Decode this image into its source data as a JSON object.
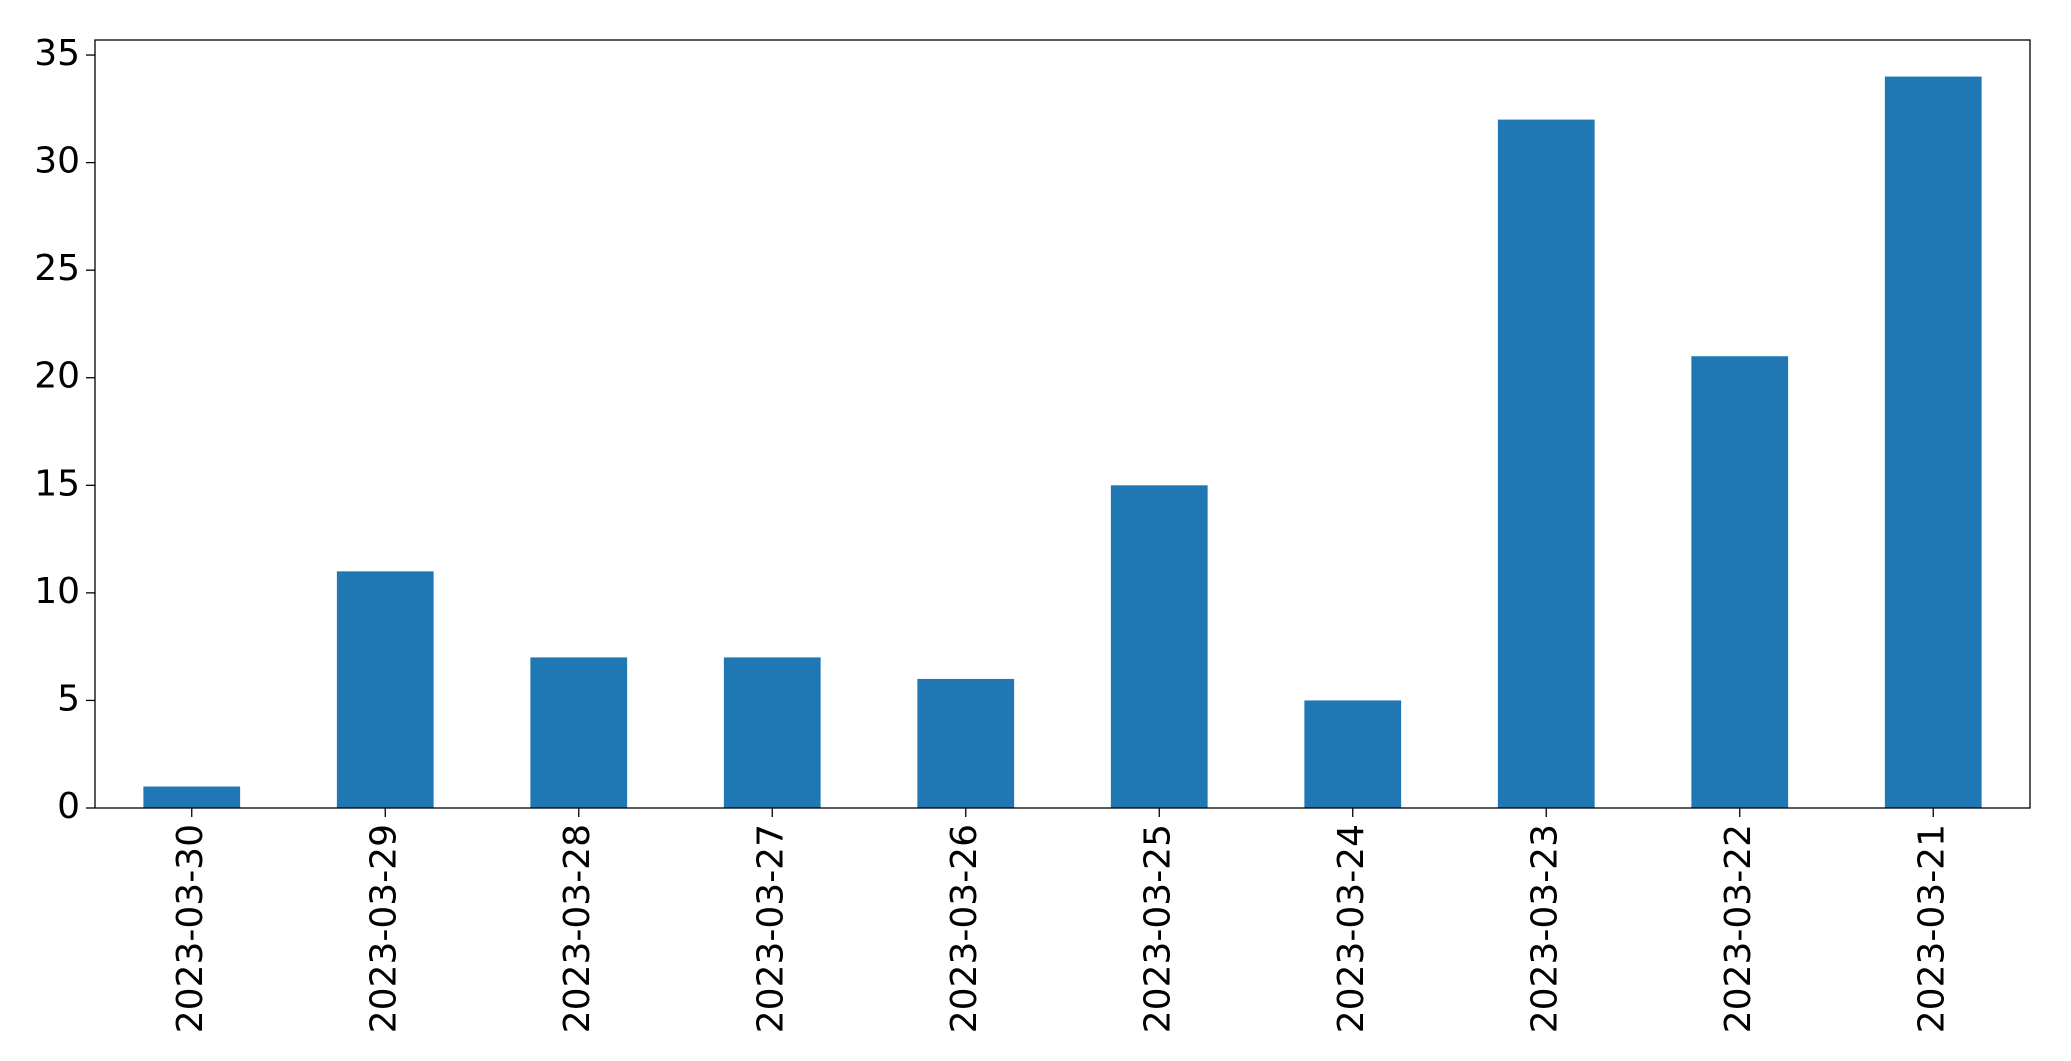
{
  "chart_data": {
    "type": "bar",
    "categories": [
      "2023-03-30",
      "2023-03-29",
      "2023-03-28",
      "2023-03-27",
      "2023-03-26",
      "2023-03-25",
      "2023-03-24",
      "2023-03-23",
      "2023-03-22",
      "2023-03-21"
    ],
    "values": [
      1,
      11,
      7,
      7,
      6,
      15,
      5,
      32,
      21,
      34
    ],
    "color": "#1f77b4",
    "ylim": [
      0,
      35.7
    ],
    "yticks": [
      0,
      5,
      10,
      15,
      20,
      25,
      30,
      35
    ],
    "grid": false
  }
}
